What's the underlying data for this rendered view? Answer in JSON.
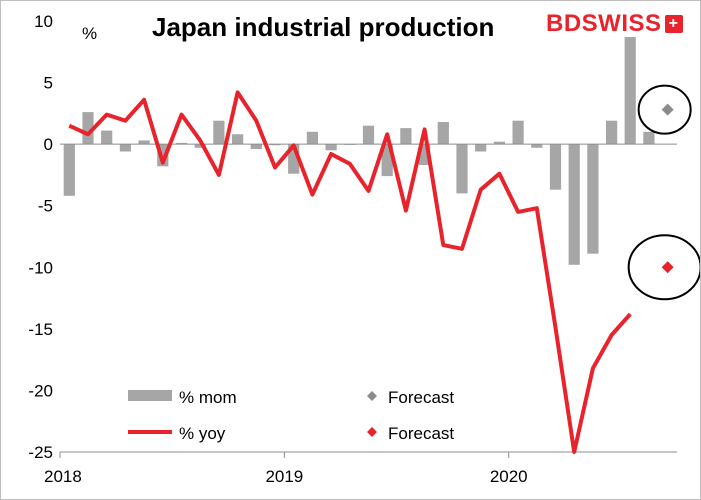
{
  "header": {
    "title": "Japan industrial production",
    "unit": "%",
    "logo_bd": "BD",
    "logo_swiss": "SWISS",
    "logo_plus": "+"
  },
  "colors": {
    "mom_bar": "#a6a6a6",
    "yoy_line": "#e8232b",
    "forecast_mom": "#8c8c8c",
    "forecast_yoy": "#e8232b",
    "axis": "#8c8c8c",
    "logo": "#e8232b"
  },
  "chart_data": {
    "type": "bar",
    "title": "Japan industrial production",
    "ylabel": "%",
    "ylim": [
      -25,
      10
    ],
    "yticks": [
      10,
      5,
      0,
      -5,
      -10,
      -15,
      -20,
      -25
    ],
    "x_start": "2018-01",
    "x_end": "2020-09",
    "xtick_labels": [
      "2018",
      "2019",
      "2020"
    ],
    "categories": [
      "2018-01",
      "2018-02",
      "2018-03",
      "2018-04",
      "2018-05",
      "2018-06",
      "2018-07",
      "2018-08",
      "2018-09",
      "2018-10",
      "2018-11",
      "2018-12",
      "2019-01",
      "2019-02",
      "2019-03",
      "2019-04",
      "2019-05",
      "2019-06",
      "2019-07",
      "2019-08",
      "2019-09",
      "2019-10",
      "2019-11",
      "2019-12",
      "2020-01",
      "2020-02",
      "2020-03",
      "2020-04",
      "2020-05",
      "2020-06",
      "2020-07",
      "2020-08",
      "2020-09"
    ],
    "series": [
      {
        "name": "% mom",
        "type": "bar",
        "values": [
          -4.2,
          2.6,
          1.1,
          -0.6,
          0.3,
          -1.8,
          0.1,
          -0.3,
          1.9,
          0.8,
          -0.4,
          -0.1,
          -2.4,
          1.0,
          -0.5,
          0.0,
          1.5,
          -2.6,
          1.3,
          -1.7,
          1.8,
          -4.0,
          -0.6,
          0.2,
          1.9,
          -0.3,
          -3.7,
          -9.8,
          -8.9,
          1.9,
          8.7,
          1.0,
          null
        ]
      },
      {
        "name": "% yoy",
        "type": "line",
        "values": [
          1.5,
          0.8,
          2.4,
          1.9,
          3.6,
          -1.5,
          2.4,
          0.3,
          -2.5,
          4.2,
          1.9,
          -1.9,
          -0.1,
          -4.1,
          -0.8,
          -1.6,
          -3.8,
          0.8,
          -5.4,
          1.2,
          -8.2,
          -8.5,
          -3.7,
          -2.4,
          -5.5,
          -5.2,
          -14.9,
          -25.0,
          -18.2,
          -15.5,
          -13.8,
          null,
          null
        ]
      }
    ],
    "forecasts": [
      {
        "name": "Forecast",
        "series": "% mom",
        "category": "2020-09",
        "value": 2.8,
        "circled": true
      },
      {
        "name": "Forecast",
        "series": "% yoy",
        "category": "2020-09",
        "value": -10.0,
        "circled": true
      }
    ],
    "legend": [
      {
        "label": "% mom",
        "kind": "bar"
      },
      {
        "label": "Forecast",
        "kind": "diamond-grey"
      },
      {
        "label": "% yoy",
        "kind": "line"
      },
      {
        "label": "Forecast",
        "kind": "diamond-red"
      }
    ],
    "legend_position": "bottom-left inside plot",
    "grid": false
  }
}
